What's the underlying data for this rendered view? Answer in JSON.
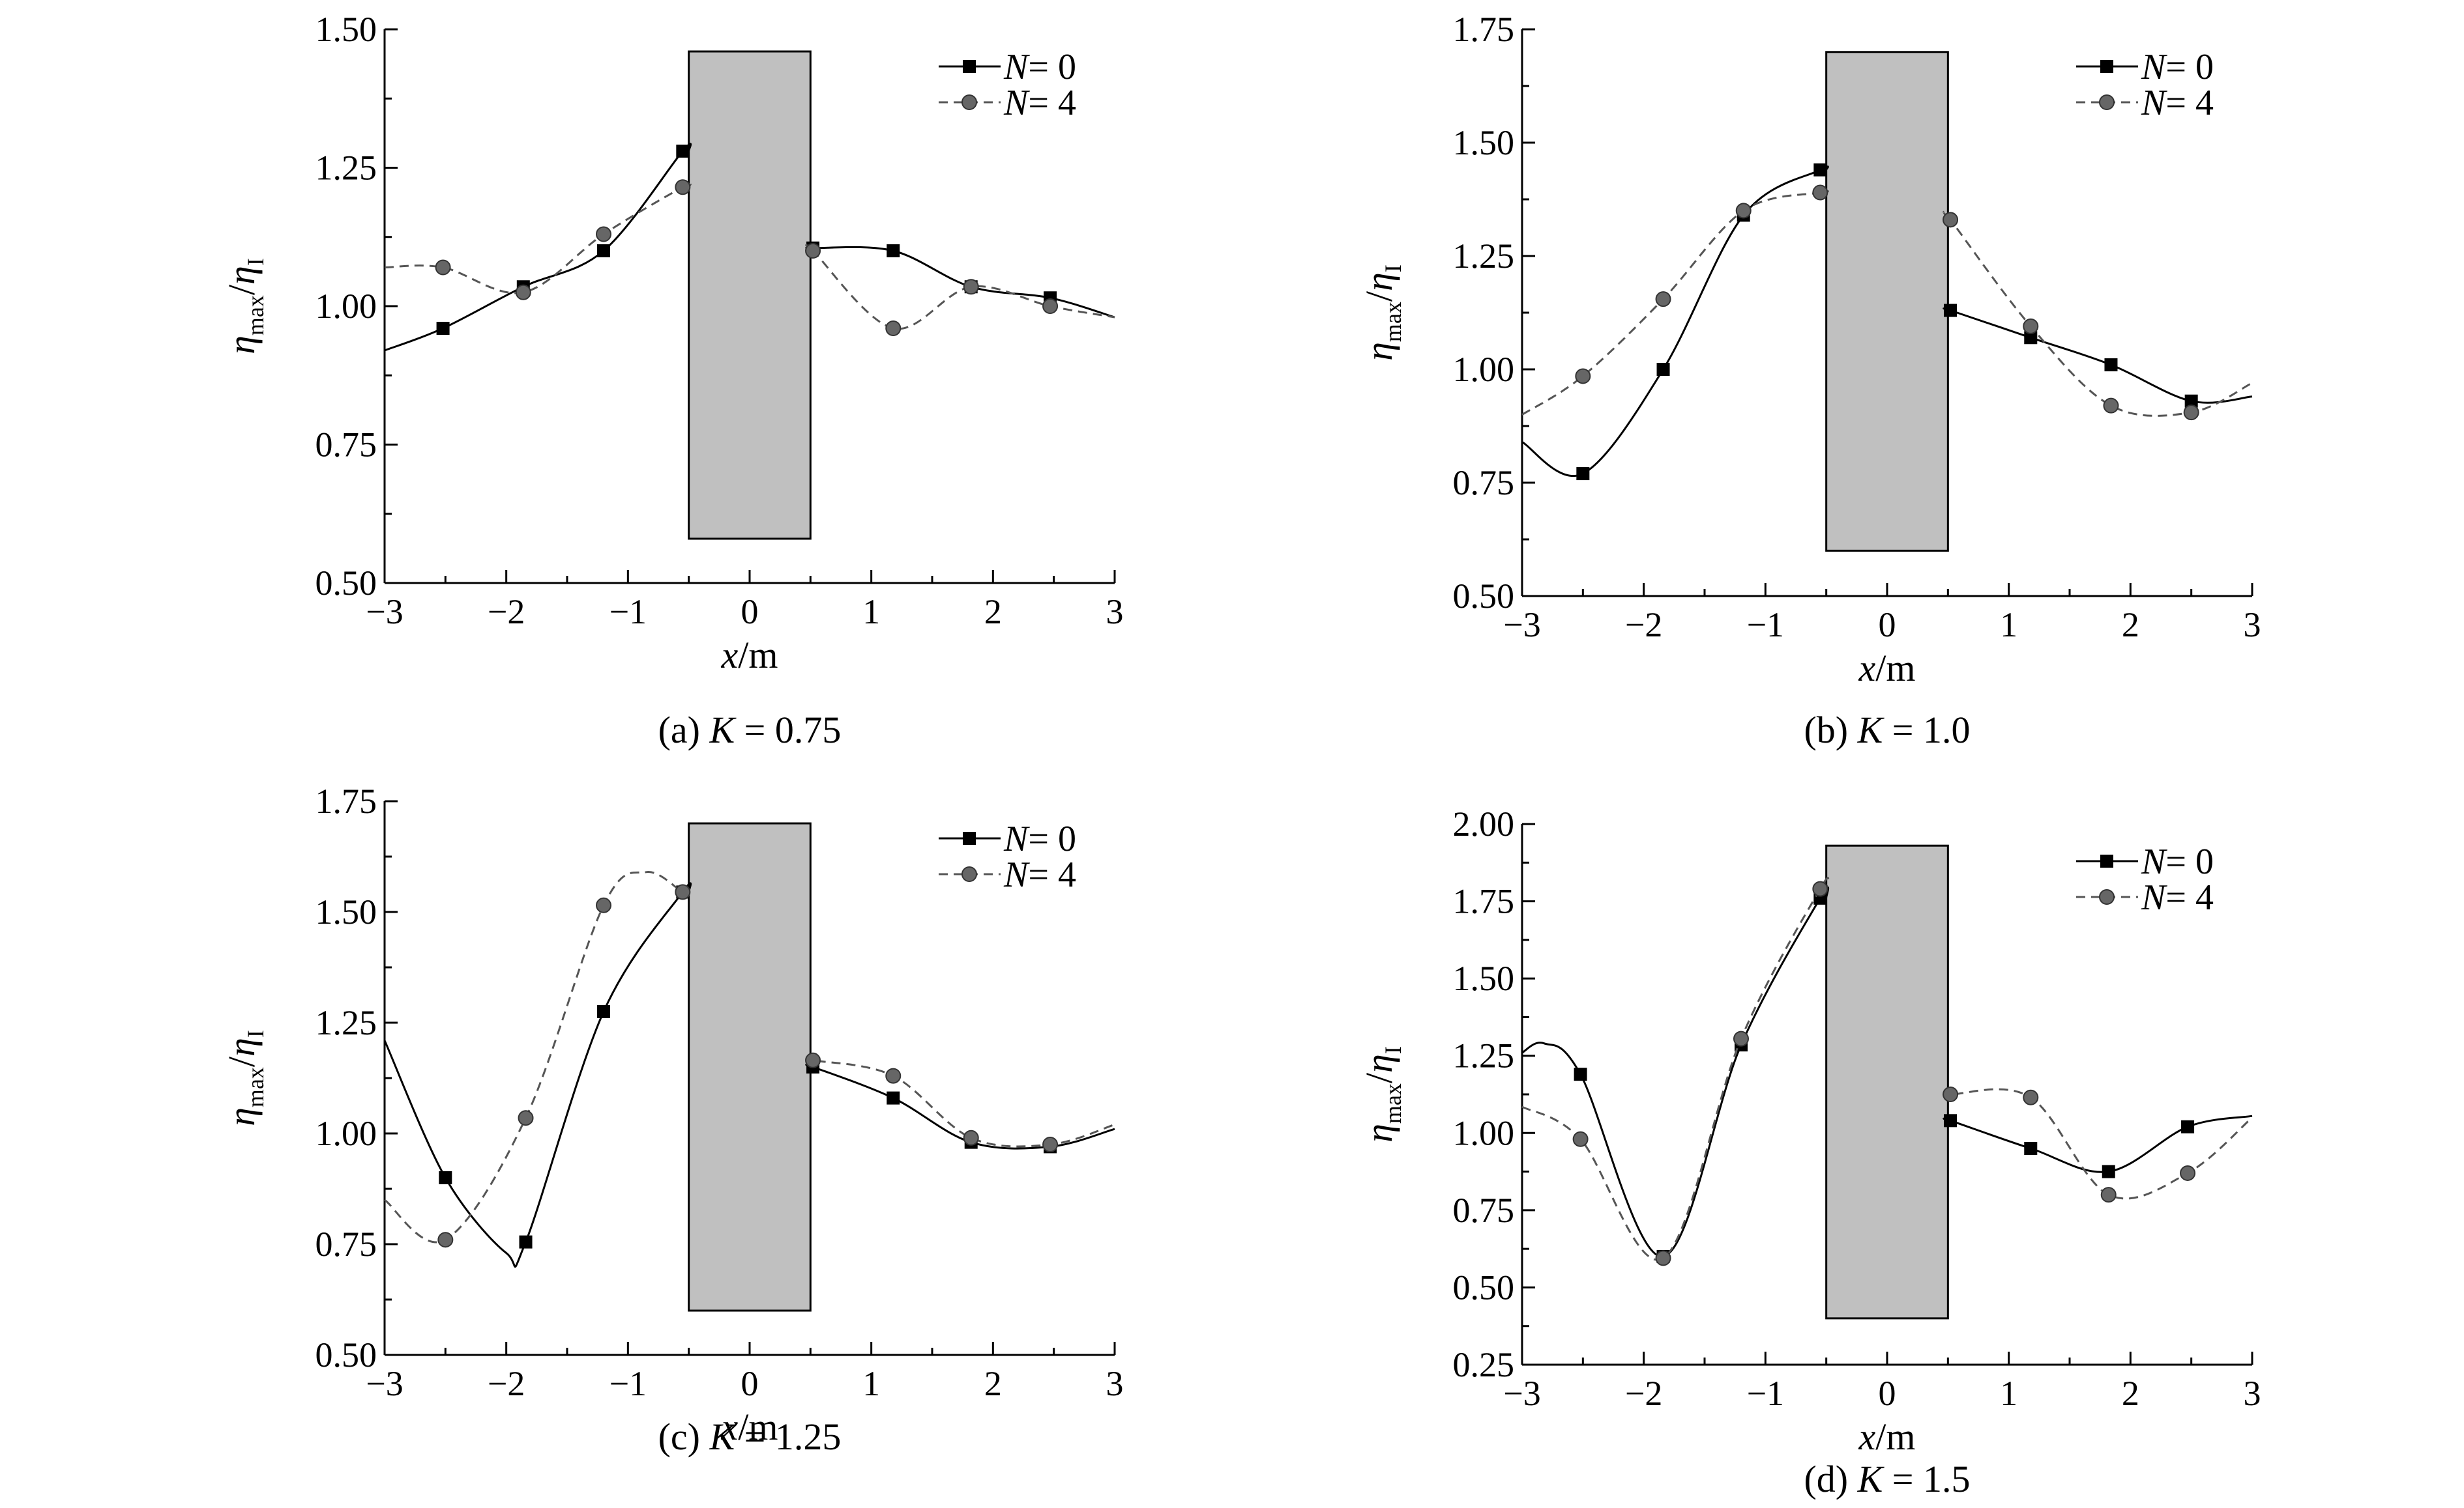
{
  "chart_data": [
    {
      "caption": "(a)  K = 0.75",
      "caption_prefix": "(a)  ",
      "caption_var": "K",
      "caption_value": " = 0.75",
      "type": "line",
      "xlabel_var": "x",
      "xlabel_unit": "/m",
      "ylabel_var": "η",
      "ylabel_num_sub": "max",
      "ylabel_den_sub": "I",
      "xlim": [
        -3,
        3
      ],
      "ylim": [
        0.5,
        1.5
      ],
      "xticks": [
        "−3",
        "−2",
        "−1",
        "0",
        "1",
        "2",
        "3"
      ],
      "xtick_values": [
        -3,
        -2,
        -1,
        0,
        1,
        2,
        3
      ],
      "yticks": [
        "0.50",
        "0.75",
        "1.00",
        "1.25",
        "1.50"
      ],
      "ytick_values": [
        0.5,
        0.75,
        1.0,
        1.25,
        1.5
      ],
      "structure": {
        "x": [
          -0.5,
          0.5
        ],
        "y": [
          0.58,
          1.46
        ]
      },
      "series": [
        {
          "name": "N= 0",
          "name_var": "N",
          "name_value": "= 0",
          "style": "solid",
          "marker": "square",
          "color": "#000000",
          "markers": {
            "x": [
              -2.52,
              -1.86,
              -1.2,
              -0.55,
              0.52,
              1.18,
              1.82,
              2.47
            ],
            "y": [
              0.96,
              1.035,
              1.1,
              1.28,
              1.105,
              1.1,
              1.035,
              1.015
            ]
          },
          "curve": {
            "x": [
              -3,
              -2.52,
              -1.86,
              -1.2,
              -0.55,
              -0.5
            ],
            "y": [
              0.92,
              0.96,
              1.035,
              1.1,
              1.28,
              1.28
            ]
          },
          "curve_right": {
            "x": [
              0.5,
              0.52,
              1.18,
              1.82,
              2.47,
              3
            ],
            "y": [
              1.105,
              1.105,
              1.1,
              1.035,
              1.015,
              0.98
            ]
          }
        },
        {
          "name": "N= 4",
          "name_var": "N",
          "name_value": "= 4",
          "style": "dashed",
          "marker": "circle",
          "color": "#555555",
          "markers": {
            "x": [
              -2.52,
              -1.86,
              -1.2,
              -0.55,
              0.52,
              1.18,
              1.82,
              2.47
            ],
            "y": [
              1.07,
              1.025,
              1.13,
              1.215,
              1.1,
              0.96,
              1.035,
              1.0
            ]
          },
          "curve": {
            "x": [
              -3,
              -2.52,
              -1.86,
              -1.2,
              -0.55,
              -0.5
            ],
            "y": [
              1.07,
              1.07,
              1.025,
              1.13,
              1.215,
              1.215
            ]
          },
          "curve_right": {
            "x": [
              0.5,
              0.52,
              1.18,
              1.82,
              2.47,
              3
            ],
            "y": [
              1.1,
              1.1,
              0.96,
              1.035,
              1.0,
              0.98
            ]
          }
        }
      ]
    },
    {
      "caption": "(b)  K = 1.0",
      "caption_prefix": "(b)  ",
      "caption_var": "K",
      "caption_value": " = 1.0",
      "type": "line",
      "xlabel_var": "x",
      "xlabel_unit": "/m",
      "ylabel_var": "η",
      "ylabel_num_sub": "max",
      "ylabel_den_sub": "I",
      "xlim": [
        -3,
        3
      ],
      "ylim": [
        0.5,
        1.75
      ],
      "xticks": [
        "−3",
        "−2",
        "−1",
        "0",
        "1",
        "2",
        "3"
      ],
      "xtick_values": [
        -3,
        -2,
        -1,
        0,
        1,
        2,
        3
      ],
      "yticks": [
        "0.50",
        "0.75",
        "1.00",
        "1.25",
        "1.50",
        "1.75"
      ],
      "ytick_values": [
        0.5,
        0.75,
        1.0,
        1.25,
        1.5,
        1.75
      ],
      "structure": {
        "x": [
          -0.5,
          0.5
        ],
        "y": [
          0.6,
          1.7
        ]
      },
      "series": [
        {
          "name": "N= 0",
          "name_var": "N",
          "name_value": "= 0",
          "style": "solid",
          "marker": "square",
          "color": "#000000",
          "markers": {
            "x": [
              -2.5,
              -1.84,
              -1.18,
              -0.55,
              0.52,
              1.18,
              1.84,
              2.5
            ],
            "y": [
              0.77,
              1.0,
              1.34,
              1.44,
              1.13,
              1.07,
              1.01,
              0.93
            ]
          },
          "curve": {
            "x": [
              -3,
              -2.5,
              -1.84,
              -1.18,
              -0.55,
              -0.5
            ],
            "y": [
              0.84,
              0.77,
              1.0,
              1.34,
              1.44,
              1.44
            ]
          },
          "curve_right": {
            "x": [
              0.5,
              0.52,
              1.18,
              1.84,
              2.5,
              3
            ],
            "y": [
              1.13,
              1.13,
              1.07,
              1.01,
              0.93,
              0.94
            ]
          }
        },
        {
          "name": "N= 4",
          "name_var": "N",
          "name_value": "= 4",
          "style": "dashed",
          "marker": "circle",
          "color": "#555555",
          "markers": {
            "x": [
              -2.5,
              -1.84,
              -1.18,
              -0.55,
              0.52,
              1.18,
              1.84,
              2.5
            ],
            "y": [
              0.985,
              1.155,
              1.35,
              1.39,
              1.33,
              1.095,
              0.92,
              0.905
            ]
          },
          "curve": {
            "x": [
              -3,
              -2.5,
              -1.84,
              -1.18,
              -0.55,
              -0.5
            ],
            "y": [
              0.9,
              0.985,
              1.155,
              1.35,
              1.39,
              1.39
            ]
          },
          "curve_right": {
            "x": [
              0.5,
              0.52,
              1.18,
              1.84,
              2.5,
              3
            ],
            "y": [
              1.33,
              1.33,
              1.095,
              0.92,
              0.905,
              0.97
            ]
          }
        }
      ]
    },
    {
      "caption": "(c)  K = 1.25",
      "caption_prefix": "(c)  ",
      "caption_var": "K",
      "caption_value": " = 1.25",
      "type": "line",
      "xlabel_var": "x",
      "xlabel_unit": "/m",
      "ylabel_var": "η",
      "ylabel_num_sub": "max",
      "ylabel_den_sub": "I",
      "xlim": [
        -3,
        3
      ],
      "ylim": [
        0.5,
        1.75
      ],
      "xticks": [
        "−3",
        "−2",
        "−1",
        "0",
        "1",
        "2",
        "3"
      ],
      "xtick_values": [
        -3,
        -2,
        -1,
        0,
        1,
        2,
        3
      ],
      "yticks": [
        "0.50",
        "0.75",
        "1.00",
        "1.25",
        "1.50",
        "1.75"
      ],
      "ytick_values": [
        0.5,
        0.75,
        1.0,
        1.25,
        1.5,
        1.75
      ],
      "structure": {
        "x": [
          -0.5,
          0.5
        ],
        "y": [
          0.6,
          1.7
        ]
      },
      "series": [
        {
          "name": "N= 0",
          "name_var": "N",
          "name_value": "= 0",
          "style": "solid",
          "marker": "square",
          "color": "#000000",
          "markers": {
            "x": [
              -2.5,
              -1.84,
              -1.2,
              -0.55,
              0.52,
              1.18,
              1.82,
              2.47
            ],
            "y": [
              0.9,
              0.755,
              1.275,
              1.545,
              1.15,
              1.08,
              0.98,
              0.97
            ]
          },
          "curve": {
            "x": [
              -3,
              -2.5,
              -2.0,
              -1.84,
              -1.2,
              -0.55,
              -0.5
            ],
            "y": [
              1.21,
              0.9,
              0.73,
              0.755,
              1.275,
              1.545,
              1.545
            ]
          },
          "curve_right": {
            "x": [
              0.5,
              0.52,
              1.18,
              1.82,
              2.47,
              3
            ],
            "y": [
              1.15,
              1.15,
              1.08,
              0.98,
              0.97,
              1.01
            ]
          }
        },
        {
          "name": "N= 4",
          "name_var": "N",
          "name_value": "= 4",
          "style": "dashed",
          "marker": "circle",
          "color": "#555555",
          "markers": {
            "x": [
              -2.5,
              -1.84,
              -1.2,
              -0.55,
              0.52,
              1.18,
              1.82,
              2.47
            ],
            "y": [
              0.76,
              1.035,
              1.515,
              1.545,
              1.165,
              1.13,
              0.99,
              0.975
            ]
          },
          "curve": {
            "x": [
              -3,
              -2.5,
              -1.84,
              -1.2,
              -0.85,
              -0.55,
              -0.5
            ],
            "y": [
              0.85,
              0.76,
              1.035,
              1.515,
              1.59,
              1.545,
              1.545
            ]
          },
          "curve_right": {
            "x": [
              0.5,
              0.52,
              1.18,
              1.82,
              2.47,
              3
            ],
            "y": [
              1.165,
              1.165,
              1.13,
              0.99,
              0.975,
              1.02
            ]
          }
        }
      ]
    },
    {
      "caption": "(d)  K = 1.5",
      "caption_prefix": "(d)  ",
      "caption_var": "K",
      "caption_value": " = 1.5",
      "type": "line",
      "xlabel_var": "x",
      "xlabel_unit": "/m",
      "ylabel_var": "η",
      "ylabel_num_sub": "max",
      "ylabel_den_sub": "I",
      "xlim": [
        -3,
        3
      ],
      "ylim": [
        0.25,
        2.0
      ],
      "xticks": [
        "−3",
        "−2",
        "−1",
        "0",
        "1",
        "2",
        "3"
      ],
      "xtick_values": [
        -3,
        -2,
        -1,
        0,
        1,
        2,
        3
      ],
      "yticks": [
        "0.25",
        "0.50",
        "0.75",
        "1.00",
        "1.25",
        "1.50",
        "1.75",
        "2.00"
      ],
      "ytick_values": [
        0.25,
        0.5,
        0.75,
        1.0,
        1.25,
        1.5,
        1.75,
        2.0
      ],
      "structure": {
        "x": [
          -0.5,
          0.5
        ],
        "y": [
          0.4,
          1.93
        ]
      },
      "series": [
        {
          "name": "N= 0",
          "name_var": "N",
          "name_value": "= 0",
          "style": "solid",
          "marker": "square",
          "color": "#000000",
          "markers": {
            "x": [
              -2.52,
              -1.84,
              -1.2,
              -0.55,
              0.52,
              1.18,
              1.82,
              2.47
            ],
            "y": [
              1.19,
              0.6,
              1.285,
              1.76,
              1.04,
              0.95,
              0.875,
              1.02
            ]
          },
          "curve": {
            "x": [
              -3,
              -2.82,
              -2.52,
              -1.84,
              -1.2,
              -0.55,
              -0.5
            ],
            "y": [
              1.26,
              1.29,
              1.19,
              0.6,
              1.285,
              1.76,
              1.76
            ]
          },
          "curve_right": {
            "x": [
              0.5,
              0.52,
              1.18,
              1.82,
              2.47,
              3
            ],
            "y": [
              1.04,
              1.04,
              0.95,
              0.875,
              1.02,
              1.055
            ]
          }
        },
        {
          "name": "N= 4",
          "name_var": "N",
          "name_value": "= 4",
          "style": "dashed",
          "marker": "circle",
          "color": "#555555",
          "markers": {
            "x": [
              -2.52,
              -1.84,
              -1.2,
              -0.55,
              0.52,
              1.18,
              1.82,
              2.47
            ],
            "y": [
              0.98,
              0.595,
              1.305,
              1.79,
              1.125,
              1.115,
              0.8,
              0.87
            ]
          },
          "curve": {
            "x": [
              -3,
              -2.52,
              -1.84,
              -1.2,
              -0.55,
              -0.5
            ],
            "y": [
              1.085,
              0.98,
              0.595,
              1.305,
              1.79,
              1.79
            ]
          },
          "curve_right": {
            "x": [
              0.5,
              0.52,
              1.18,
              1.82,
              2.47,
              3
            ],
            "y": [
              1.125,
              1.125,
              1.115,
              0.8,
              0.87,
              1.05
            ]
          }
        }
      ]
    }
  ],
  "colors": {
    "structure_fill": "#c0c0c0",
    "axis": "#000000",
    "series_n0": "#000000",
    "series_n4": "#555555"
  }
}
